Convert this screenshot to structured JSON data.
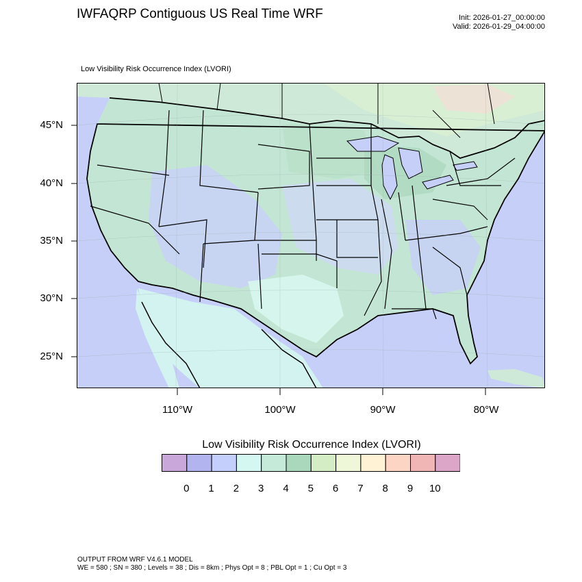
{
  "header": {
    "title": "IWFAQRP Contiguous US Real Time WRF",
    "init": "Init: 2026-01-27_00:00:00",
    "valid": "Valid: 2026-01-29_04:00:00"
  },
  "map": {
    "subtitle": "Low Visibility Risk Occurrence Index   (LVORI)",
    "field": "LVORI",
    "lat_ticks": [
      "45°N",
      "40°N",
      "35°N",
      "30°N",
      "25°N"
    ],
    "lon_ticks": [
      "110°W",
      "100°W",
      "90°W",
      "80°W"
    ],
    "ocean_color": "#c5cff8",
    "land_low_color": "#cde4f0",
    "land_mid_color": "#c3e6d4",
    "boundary_color": "#000000"
  },
  "colorbar": {
    "title": "Low Visibility Risk Occurrence Index  (LVORI)",
    "labels": [
      "0",
      "1",
      "2",
      "3",
      "4",
      "5",
      "6",
      "7",
      "8",
      "9",
      "10"
    ],
    "colors": [
      "#c9a7db",
      "#b1b4ef",
      "#c4cffb",
      "#d5f7f2",
      "#c5ead9",
      "#a9d8bd",
      "#d5edc5",
      "#eef7d8",
      "#fff2d5",
      "#fdd5c5",
      "#f0b5b5",
      "#dca6c9"
    ]
  },
  "footer": {
    "line1": "OUTPUT FROM WRF V4.6.1 MODEL",
    "line2": "WE = 580 ; SN = 380 ; Levels = 38 ; Dis = 8km ; Phys Opt = 8 ; PBL Opt = 1 ; Cu Opt = 3"
  }
}
